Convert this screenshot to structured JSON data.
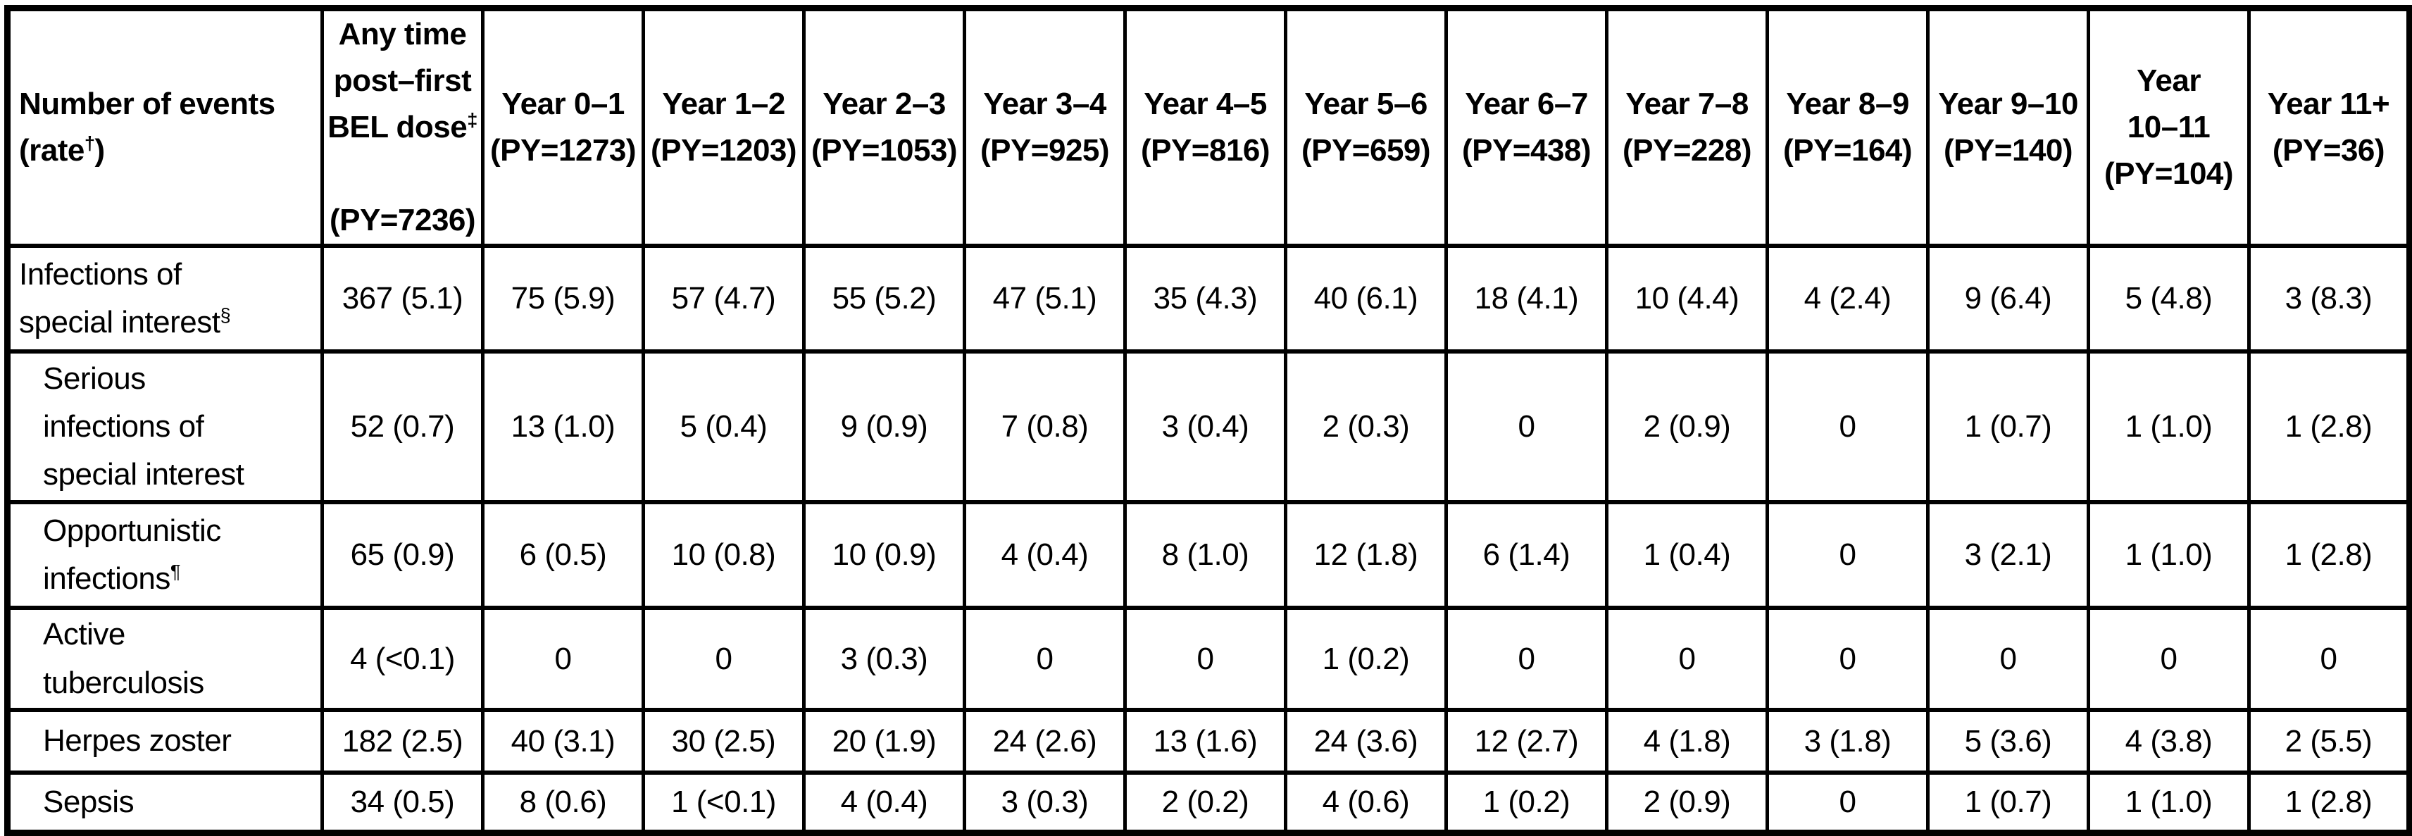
{
  "table": {
    "corner_header": "Number of events\n(rate^{†})",
    "columns": [
      {
        "header": "Any time\npost–first\nBEL dose^{‡}\n\n(PY=7236)"
      },
      {
        "header": "Year 0–1\n(PY=1273)"
      },
      {
        "header": "Year 1–2\n(PY=1203)"
      },
      {
        "header": "Year 2–3\n(PY=1053)"
      },
      {
        "header": "Year 3–4\n(PY=925)"
      },
      {
        "header": "Year 4–5\n(PY=816)"
      },
      {
        "header": "Year 5–6\n(PY=659)"
      },
      {
        "header": "Year 6–7\n(PY=438)"
      },
      {
        "header": "Year 7–8\n(PY=228)"
      },
      {
        "header": "Year 8–9\n(PY=164)"
      },
      {
        "header": "Year 9–10\n(PY=140)"
      },
      {
        "header": "Year\n10–11\n(PY=104)"
      },
      {
        "header": "Year 11+\n(PY=36)"
      }
    ],
    "rows": [
      {
        "label": "Infections of\nspecial interest^{§}",
        "indented": false,
        "values": [
          "367 (5.1)",
          "75 (5.9)",
          "57 (4.7)",
          "55 (5.2)",
          "47 (5.1)",
          "35 (4.3)",
          "40 (6.1)",
          "18 (4.1)",
          "10 (4.4)",
          "4 (2.4)",
          "9 (6.4)",
          "5 (4.8)",
          "3 (8.3)"
        ]
      },
      {
        "label": "Serious\ninfections of\nspecial interest",
        "indented": true,
        "values": [
          "52 (0.7)",
          "13 (1.0)",
          "5 (0.4)",
          "9 (0.9)",
          "7 (0.8)",
          "3 (0.4)",
          "2 (0.3)",
          "0",
          "2 (0.9)",
          "0",
          "1 (0.7)",
          "1 (1.0)",
          "1 (2.8)"
        ]
      },
      {
        "label": "Opportunistic\ninfections^{¶}",
        "indented": true,
        "values": [
          "65 (0.9)",
          "6 (0.5)",
          "10 (0.8)",
          "10 (0.9)",
          "4 (0.4)",
          "8 (1.0)",
          "12 (1.8)",
          "6 (1.4)",
          "1 (0.4)",
          "0",
          "3 (2.1)",
          "1 (1.0)",
          "1 (2.8)"
        ]
      },
      {
        "label": "Active\ntuberculosis",
        "indented": true,
        "values": [
          "4 (<0.1)",
          "0",
          "0",
          "3 (0.3)",
          "0",
          "0",
          "1 (0.2)",
          "0",
          "0",
          "0",
          "0",
          "0",
          "0"
        ]
      },
      {
        "label": "Herpes zoster",
        "indented": true,
        "values": [
          "182 (2.5)",
          "40 (3.1)",
          "30 (2.5)",
          "20 (1.9)",
          "24 (2.6)",
          "13 (1.6)",
          "24 (3.6)",
          "12 (2.7)",
          "4 (1.8)",
          "3 (1.8)",
          "5 (3.6)",
          "4 (3.8)",
          "2 (5.5)"
        ]
      },
      {
        "label": "Sepsis",
        "indented": true,
        "values": [
          "34 (0.5)",
          "8 (0.6)",
          "1 (<0.1)",
          "4 (0.4)",
          "3 (0.3)",
          "2 (0.2)",
          "4 (0.6)",
          "1 (0.2)",
          "2 (0.9)",
          "0",
          "1 (0.7)",
          "1 (1.0)",
          "1 (2.8)"
        ]
      }
    ]
  }
}
